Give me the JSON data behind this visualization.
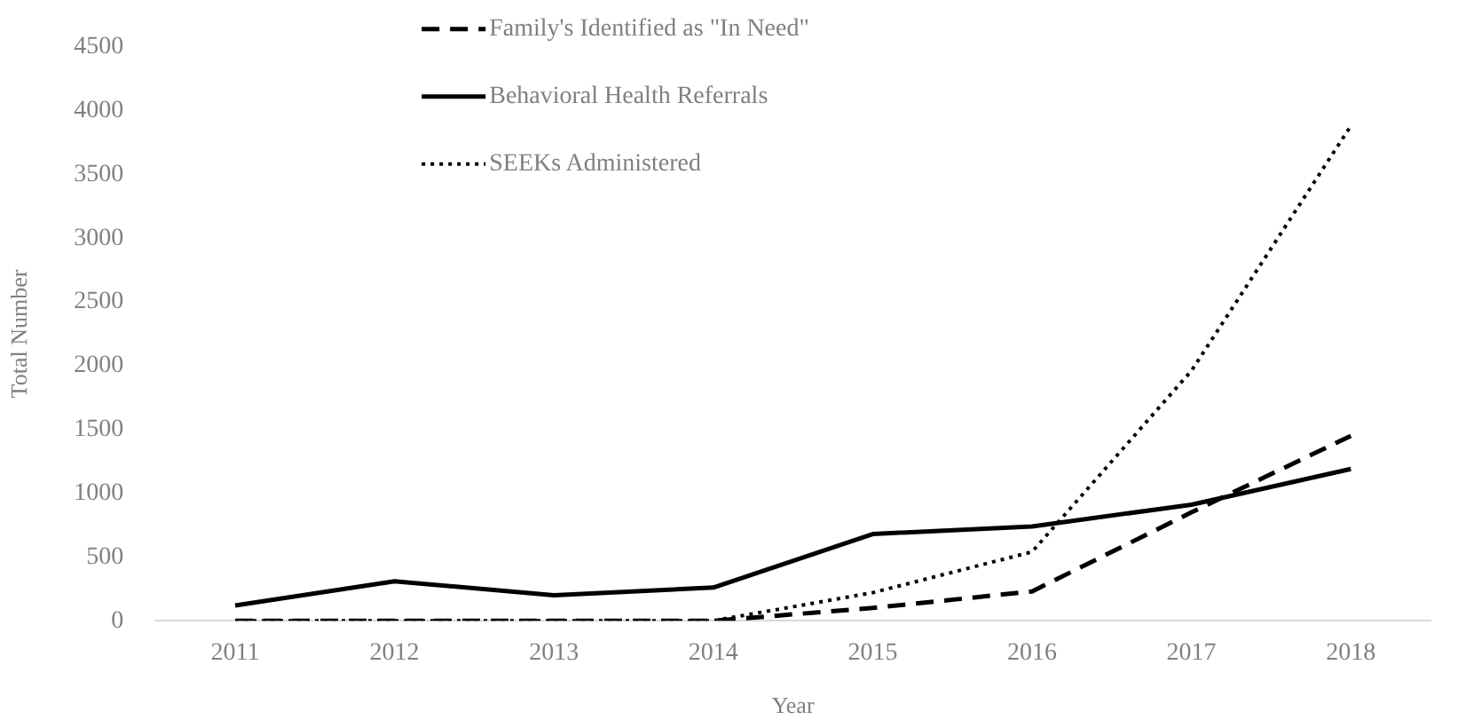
{
  "chart_data": {
    "type": "line",
    "xlabel": "Year",
    "ylabel": "Total Number",
    "categories": [
      "2011",
      "2012",
      "2013",
      "2014",
      "2015",
      "2016",
      "2017",
      "2018"
    ],
    "series": [
      {
        "name": "Family's Identified as \"In Need\"",
        "color": "#000000",
        "line_style": "dashed",
        "values": [
          0,
          0,
          0,
          0,
          100,
          230,
          850,
          1450
        ]
      },
      {
        "name": "Behavioral Health Referrals",
        "color": "#000000",
        "line_style": "solid",
        "values": [
          120,
          310,
          200,
          260,
          680,
          740,
          910,
          1190
        ]
      },
      {
        "name": "SEEKs Administered",
        "color": "#000000",
        "line_style": "dotted",
        "values": [
          0,
          0,
          0,
          0,
          220,
          540,
          1960,
          3880
        ]
      }
    ],
    "ylim": [
      0,
      4500
    ],
    "yticks": [
      0,
      500,
      1000,
      1500,
      2000,
      2500,
      3000,
      3500,
      4000,
      4500
    ],
    "grid": false,
    "legend": "top left",
    "marker": "none"
  }
}
